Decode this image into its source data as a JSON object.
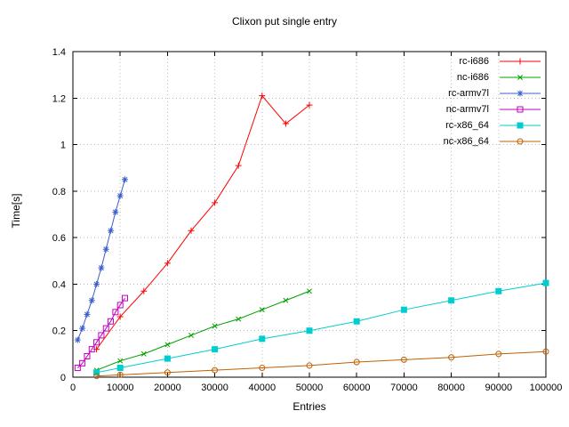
{
  "chart_data": {
    "type": "line",
    "title": "Clixon put single entry",
    "xlabel": "Entries",
    "ylabel": "Time[s]",
    "xlim": [
      0,
      100000
    ],
    "ylim": [
      0,
      1.4
    ],
    "grid": true,
    "legend_position": "top-right-inside",
    "xticks": {
      "values": [
        0,
        10000,
        20000,
        30000,
        40000,
        50000,
        60000,
        70000,
        80000,
        90000,
        100000
      ],
      "labels": [
        "0",
        "10000",
        "20000",
        "30000",
        "40000",
        "50000",
        "60000",
        "70000",
        "80000",
        "90000",
        "100000"
      ]
    },
    "yticks": {
      "values": [
        0,
        0.2,
        0.4,
        0.6,
        0.8,
        1.0,
        1.2,
        1.4
      ],
      "labels": [
        "0",
        "0.2",
        "0.4",
        "0.6",
        "0.8",
        "1",
        "1.2",
        "1.4"
      ]
    },
    "series": [
      {
        "name": "rc-i686",
        "color": "#ff0000",
        "marker": "plus",
        "x": [
          5000,
          10000,
          15000,
          20000,
          25000,
          30000,
          35000,
          40000,
          45000,
          50000
        ],
        "y": [
          0.12,
          0.26,
          0.37,
          0.49,
          0.63,
          0.75,
          0.91,
          1.21,
          1.09,
          1.17
        ]
      },
      {
        "name": "nc-i686",
        "color": "#00a000",
        "marker": "cross",
        "x": [
          5000,
          10000,
          15000,
          20000,
          25000,
          30000,
          35000,
          40000,
          45000,
          50000
        ],
        "y": [
          0.03,
          0.07,
          0.1,
          0.14,
          0.18,
          0.22,
          0.25,
          0.29,
          0.33,
          0.37
        ]
      },
      {
        "name": "rc-armv7l",
        "color": "#3a5fcd",
        "marker": "asterisk",
        "x": [
          1000,
          2000,
          3000,
          4000,
          5000,
          6000,
          7000,
          8000,
          9000,
          10000,
          11000
        ],
        "y": [
          0.16,
          0.21,
          0.27,
          0.33,
          0.4,
          0.47,
          0.55,
          0.63,
          0.71,
          0.78,
          0.85
        ]
      },
      {
        "name": "nc-armv7l",
        "color": "#c000c0",
        "marker": "square-open",
        "x": [
          1000,
          2000,
          3000,
          4000,
          5000,
          6000,
          7000,
          8000,
          9000,
          10000,
          11000
        ],
        "y": [
          0.04,
          0.06,
          0.09,
          0.12,
          0.15,
          0.18,
          0.21,
          0.24,
          0.28,
          0.31,
          0.34
        ]
      },
      {
        "name": "rc-x86_64",
        "color": "#00cdcd",
        "marker": "square-filled",
        "x": [
          5000,
          10000,
          20000,
          30000,
          40000,
          50000,
          60000,
          70000,
          80000,
          90000,
          100000
        ],
        "y": [
          0.02,
          0.04,
          0.08,
          0.12,
          0.165,
          0.2,
          0.24,
          0.29,
          0.33,
          0.37,
          0.405
        ]
      },
      {
        "name": "nc-x86_64",
        "color": "#c06000",
        "marker": "circle-open",
        "x": [
          5000,
          10000,
          20000,
          30000,
          40000,
          50000,
          60000,
          70000,
          80000,
          90000,
          100000
        ],
        "y": [
          0.005,
          0.01,
          0.02,
          0.03,
          0.04,
          0.05,
          0.065,
          0.075,
          0.085,
          0.1,
          0.11
        ]
      }
    ]
  }
}
